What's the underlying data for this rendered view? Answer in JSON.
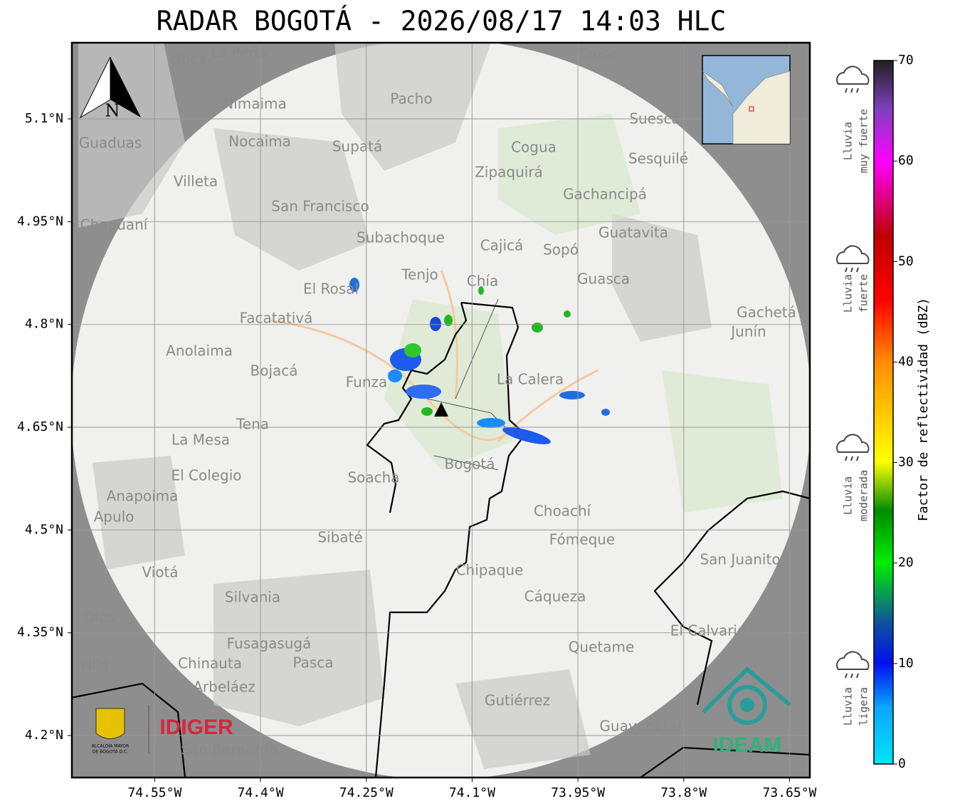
{
  "title": "RADAR BOGOTÁ - 2026/08/17 14:03 HLC",
  "map": {
    "xlim": [
      -74.6674,
      -73.6212
    ],
    "ylim": [
      4.1387,
      5.2112
    ],
    "xticks": [
      {
        "value": -74.55,
        "label": "74.55°W"
      },
      {
        "value": -74.4,
        "label": "74.4°W"
      },
      {
        "value": -74.25,
        "label": "74.25°W"
      },
      {
        "value": -74.1,
        "label": "74.1°W"
      },
      {
        "value": -73.95,
        "label": "73.95°W"
      },
      {
        "value": -73.8,
        "label": "73.8°W"
      },
      {
        "value": -73.65,
        "label": "73.65°W"
      }
    ],
    "yticks": [
      {
        "value": 5.1,
        "label": "5.1°N"
      },
      {
        "value": 4.95,
        "label": "4.95°N"
      },
      {
        "value": 4.8,
        "label": "4.8°N"
      },
      {
        "value": 4.65,
        "label": "4.65°N"
      },
      {
        "value": 4.5,
        "label": "4.5°N"
      },
      {
        "value": 4.35,
        "label": "4.35°N"
      },
      {
        "value": 4.2,
        "label": "4.2°N"
      }
    ],
    "north": "N",
    "places": [
      "La Peña",
      "Útica",
      "Tausa",
      "Pacho",
      "Nimaima",
      "Suesca",
      "Guaduas",
      "Nocaima",
      "Supatá",
      "Cogua",
      "Sesquilé",
      "Zipaquirá",
      "Villeta",
      "Gachancipá",
      "San Francisco",
      "Chaguaní",
      "Guatavita",
      "Subachoque",
      "Cajicá",
      "Sopó",
      "Tenjo",
      "Chía",
      "Guasca",
      "El Rosal",
      "Facatativá",
      "Gachetá",
      "Junín",
      "Anolaima",
      "Bojacá",
      "La Calera",
      "Funza",
      "Tena",
      "La Mesa",
      "Bogotá",
      "Soacha",
      "El Colegio",
      "Anapoima",
      "Apulo",
      "Choachí",
      "Sibaté",
      "Fómeque",
      "San Juanito",
      "Chipaque",
      "Viotá",
      "Silvania",
      "Cáqueza",
      "Dios",
      "El Calvario",
      "Fusagasugá",
      "Quetame",
      "Nilo",
      "Chinauta",
      "Pasca",
      "Arbeláez",
      "Gutiérrez",
      "Guayabetal",
      "San Bernardo"
    ]
  },
  "colorbar": {
    "label": "Factor de reflectividad (dBZ)",
    "lim": [
      0,
      70
    ],
    "ticks": [
      0,
      10,
      20,
      30,
      40,
      50,
      60,
      70
    ]
  },
  "intensity": [
    [
      "Lluvia",
      "muy fuerte"
    ],
    [
      "Lluvia",
      "fuerte"
    ],
    [
      "Lluvia",
      "moderada"
    ],
    [
      "Lluvia",
      "ligera"
    ]
  ],
  "logos": {
    "alcaldia": [
      "ALCALDÍA MAYOR",
      "DE BOGOTÁ D.C."
    ],
    "idiger": "IDIGER",
    "ideam": "IDEAM"
  }
}
